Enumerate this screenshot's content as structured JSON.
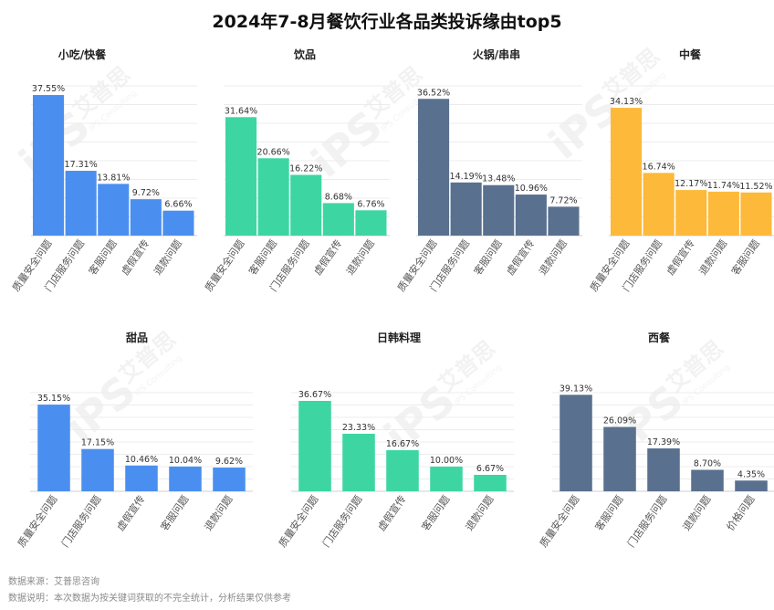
{
  "title": "2024年7-8月餐饮行业各品类投诉缘由top5",
  "notes": {
    "source": "数据来源：艾普思咨询",
    "description": "数据说明：本次数据为按关键词获取的不完全统计，分析结果仅供参考"
  },
  "watermark": {
    "logo": "iPS",
    "brand": "艾普思",
    "sub": "IPS Consulting"
  },
  "colors": {
    "blue": "#4A8FF0",
    "green": "#3DD6A3",
    "slate": "#59708F",
    "yellow": "#FDB93A"
  },
  "chart_data": [
    {
      "type": "bar",
      "title": "小吃/快餐",
      "color": "blue",
      "categories": [
        "质量安全问题",
        "门店服务问题",
        "客服问题",
        "虚假宣传",
        "退款问题"
      ],
      "values": [
        37.55,
        17.31,
        13.81,
        9.72,
        6.66
      ],
      "labels": [
        "37.55%",
        "17.31%",
        "13.81%",
        "9.72%",
        "6.66%"
      ],
      "ylim": [
        0,
        40
      ]
    },
    {
      "type": "bar",
      "title": "饮品",
      "color": "green",
      "categories": [
        "质量安全问题",
        "客服问题",
        "门店服务问题",
        "虚假宣传",
        "退款问题"
      ],
      "values": [
        31.64,
        20.66,
        16.22,
        8.68,
        6.76
      ],
      "labels": [
        "31.64%",
        "20.66%",
        "16.22%",
        "8.68%",
        "6.76%"
      ],
      "ylim": [
        0,
        40
      ]
    },
    {
      "type": "bar",
      "title": "火锅/串串",
      "color": "slate",
      "categories": [
        "质量安全问题",
        "门店服务问题",
        "客服问题",
        "虚假宣传",
        "退款问题"
      ],
      "values": [
        36.52,
        14.19,
        13.48,
        10.96,
        7.72
      ],
      "labels": [
        "36.52%",
        "14.19%",
        "13.48%",
        "10.96%",
        "7.72%"
      ],
      "ylim": [
        0,
        40
      ]
    },
    {
      "type": "bar",
      "title": "中餐",
      "color": "yellow",
      "categories": [
        "质量安全问题",
        "门店服务问题",
        "虚假宣传",
        "退款问题",
        "客服问题"
      ],
      "values": [
        34.13,
        16.74,
        12.17,
        11.74,
        11.52
      ],
      "labels": [
        "34.13%",
        "16.74%",
        "12.17%",
        "11.74%",
        "11.52%"
      ],
      "ylim": [
        0,
        40
      ]
    },
    {
      "type": "bar",
      "title": "甜品",
      "color": "blue",
      "categories": [
        "质量安全问题",
        "门店服务问题",
        "虚假宣传",
        "客服问题",
        "退款问题"
      ],
      "values": [
        35.15,
        17.15,
        10.46,
        10.04,
        9.62
      ],
      "labels": [
        "35.15%",
        "17.15%",
        "10.46%",
        "10.04%",
        "9.62%"
      ],
      "ylim": [
        0,
        40
      ]
    },
    {
      "type": "bar",
      "title": "日韩料理",
      "color": "green",
      "categories": [
        "质量安全问题",
        "门店服务问题",
        "虚假宣传",
        "客服问题",
        "退款问题"
      ],
      "values": [
        36.67,
        23.33,
        16.67,
        10.0,
        6.67
      ],
      "labels": [
        "36.67%",
        "23.33%",
        "16.67%",
        "10.00%",
        "6.67%"
      ],
      "ylim": [
        0,
        40
      ]
    },
    {
      "type": "bar",
      "title": "西餐",
      "color": "slate",
      "categories": [
        "质量安全问题",
        "客服问题",
        "门店服务问题",
        "退款问题",
        "价格问题"
      ],
      "values": [
        39.13,
        26.09,
        17.39,
        8.7,
        4.35
      ],
      "labels": [
        "39.13%",
        "26.09%",
        "17.39%",
        "8.70%",
        "4.35%"
      ],
      "ylim": [
        0,
        40
      ]
    }
  ]
}
